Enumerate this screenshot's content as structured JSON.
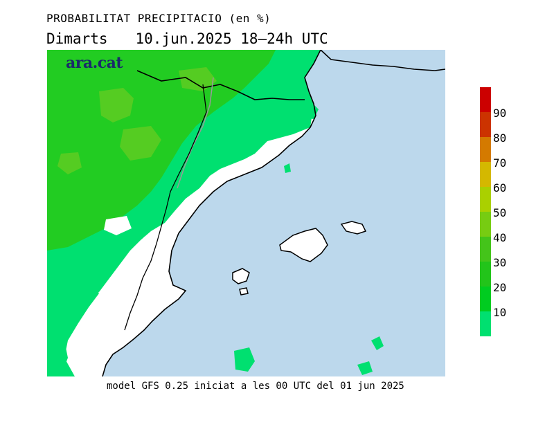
{
  "header": {
    "title": "PROBABILITAT PRECIPITACIO (en %)",
    "day": "Dimarts",
    "date_range": "10.jun.2025 18–24h UTC"
  },
  "logo": {
    "text": "ara.cat"
  },
  "footer": {
    "text": "model GFS 0.25 iniciat a les 00 UTC del 01 jun 2025"
  },
  "legend": {
    "bins": [
      {
        "label": "10",
        "color": "#00e070"
      },
      {
        "label": "20",
        "color": "#00cc20"
      },
      {
        "label": "30",
        "color": "#22c41a"
      },
      {
        "label": "40",
        "color": "#44c41a"
      },
      {
        "label": "50",
        "color": "#77cc12"
      },
      {
        "label": "60",
        "color": "#aad000"
      },
      {
        "label": "70",
        "color": "#d4b800"
      },
      {
        "label": "80",
        "color": "#d47a00"
      },
      {
        "label": "90",
        "color": "#cc3300"
      },
      {
        "label": "",
        "color": "#cc0000"
      }
    ]
  },
  "map": {
    "colors": {
      "sea": "#bcd8ec",
      "land_none": "#ffffff",
      "p10": "#00e070",
      "p20": "#22cc22",
      "p30": "#55cc22",
      "border_country": "#000000",
      "border_region": "#999999"
    }
  }
}
